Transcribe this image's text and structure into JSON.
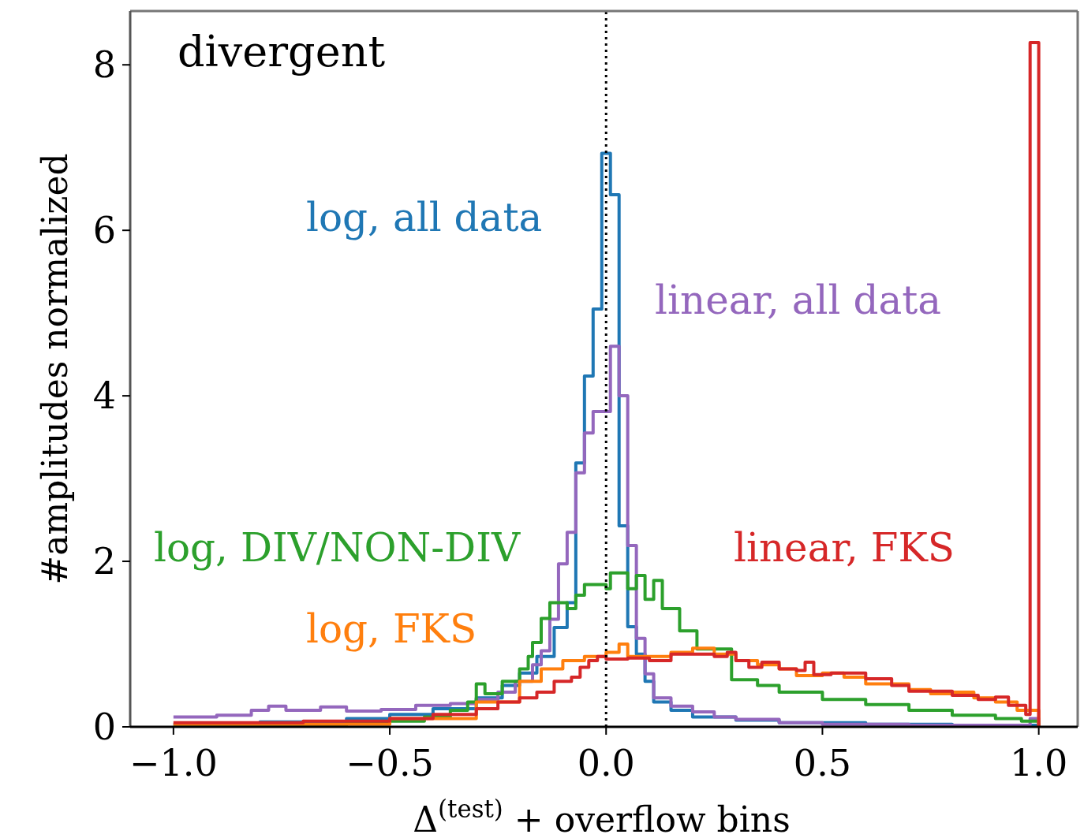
{
  "chart_data": {
    "type": "step",
    "xlabel": "Δ$^{(test)}$ + overflow bins",
    "ylabel": "#amplitudes normalized",
    "xlim": [
      -1.1,
      1.09
    ],
    "ylim": [
      0,
      8.65
    ],
    "xticks": [
      {
        "value": -1,
        "label": "−1.0"
      },
      {
        "value": -0.5,
        "label": "−0.5"
      },
      {
        "value": 0,
        "label": "0.0"
      },
      {
        "value": 0.5,
        "label": "0.5"
      },
      {
        "value": 1,
        "label": "1.0"
      }
    ],
    "yticks": [
      0,
      2,
      4,
      6,
      8
    ],
    "grid": false,
    "ref_lines": [
      {
        "axis": "x",
        "value": 0,
        "color": "#000000",
        "line_style": "dotted"
      }
    ],
    "annotations": [
      "divergent"
    ],
    "series": [
      {
        "name": "log, all data",
        "color": "#1f77b4",
        "x": [
          -1.0,
          -0.8,
          -0.6,
          -0.5,
          -0.4,
          -0.3,
          -0.24,
          -0.2,
          -0.16,
          -0.12,
          -0.09,
          -0.07,
          -0.05,
          -0.03,
          -0.01,
          0.01,
          0.03,
          0.05,
          0.07,
          0.09,
          0.11,
          0.15,
          0.2,
          0.3,
          0.4,
          0.6,
          0.8,
          1.0
        ],
        "values": [
          0.03,
          0.06,
          0.1,
          0.15,
          0.22,
          0.35,
          0.5,
          0.65,
          0.85,
          1.2,
          1.5,
          3.19,
          4.24,
          5.05,
          6.93,
          6.43,
          2.43,
          1.21,
          0.88,
          0.55,
          0.3,
          0.2,
          0.12,
          0.08,
          0.05,
          0.03,
          0.02,
          0
        ]
      },
      {
        "name": "linear, all data",
        "color": "#9467bd",
        "x": [
          -1.0,
          -0.9,
          -0.82,
          -0.78,
          -0.74,
          -0.66,
          -0.6,
          -0.52,
          -0.44,
          -0.36,
          -0.3,
          -0.25,
          -0.21,
          -0.17,
          -0.15,
          -0.13,
          -0.11,
          -0.09,
          -0.07,
          -0.05,
          -0.03,
          0.01,
          0.03,
          0.05,
          0.07,
          0.09,
          0.11,
          0.15,
          0.2,
          0.25,
          0.3,
          0.4,
          0.5,
          0.7,
          0.98,
          1.0
        ],
        "values": [
          0.12,
          0.14,
          0.2,
          0.25,
          0.2,
          0.24,
          0.19,
          0.21,
          0.26,
          0.28,
          0.33,
          0.42,
          0.55,
          0.75,
          0.92,
          1.3,
          1.97,
          2.35,
          3.07,
          3.55,
          3.81,
          4.6,
          4.0,
          2.19,
          1.07,
          0.64,
          0.35,
          0.25,
          0.18,
          0.12,
          0.09,
          0.05,
          0.03,
          0.02,
          0.1,
          0
        ]
      },
      {
        "name": "log, DIV/NON-DIV",
        "color": "#2ca02c",
        "x": [
          -1.0,
          -0.6,
          -0.5,
          -0.42,
          -0.36,
          -0.32,
          -0.3,
          -0.28,
          -0.24,
          -0.2,
          -0.18,
          -0.17,
          -0.15,
          -0.13,
          -0.09,
          -0.07,
          -0.05,
          0.0,
          0.01,
          0.05,
          0.07,
          0.09,
          0.11,
          0.13,
          0.17,
          0.21,
          0.29,
          0.35,
          0.4,
          0.5,
          0.6,
          0.7,
          0.8,
          0.9,
          0.96,
          1.0
        ],
        "values": [
          0.02,
          0.04,
          0.07,
          0.12,
          0.2,
          0.3,
          0.52,
          0.4,
          0.55,
          0.7,
          0.85,
          1.02,
          1.31,
          1.5,
          1.43,
          1.59,
          1.72,
          1.67,
          1.86,
          1.67,
          1.83,
          1.54,
          1.77,
          1.43,
          1.16,
          0.94,
          0.57,
          0.5,
          0.42,
          0.33,
          0.27,
          0.2,
          0.14,
          0.1,
          0.07,
          0
        ]
      },
      {
        "name": "log, FKS",
        "color": "#ff7f0e",
        "x": [
          -1.0,
          -0.5,
          -0.3,
          -0.2,
          -0.15,
          -0.1,
          -0.05,
          0.0,
          0.03,
          0.05,
          0.1,
          0.15,
          0.2,
          0.25,
          0.3,
          0.35,
          0.4,
          0.44,
          0.5,
          0.55,
          0.6,
          0.7,
          0.75,
          0.8,
          0.85,
          0.9,
          0.95,
          1.0
        ],
        "values": [
          0.03,
          0.1,
          0.3,
          0.55,
          0.7,
          0.8,
          0.85,
          0.9,
          1.0,
          0.85,
          0.85,
          0.9,
          0.95,
          0.88,
          0.8,
          0.75,
          0.7,
          0.62,
          0.65,
          0.6,
          0.52,
          0.45,
          0.4,
          0.42,
          0.35,
          0.3,
          0.2,
          0
        ]
      },
      {
        "name": "linear, FKS",
        "color": "#d62728",
        "x": [
          -1.0,
          -0.7,
          -0.5,
          -0.4,
          -0.3,
          -0.25,
          -0.2,
          -0.16,
          -0.12,
          -0.08,
          -0.06,
          -0.04,
          -0.02,
          0.0,
          0.05,
          0.1,
          0.15,
          0.2,
          0.25,
          0.28,
          0.3,
          0.33,
          0.36,
          0.4,
          0.44,
          0.46,
          0.48,
          0.52,
          0.6,
          0.66,
          0.7,
          0.8,
          0.86,
          0.9,
          0.93,
          0.97,
          0.98,
          1.0
        ],
        "values": [
          0.05,
          0.07,
          0.1,
          0.15,
          0.22,
          0.3,
          0.35,
          0.42,
          0.55,
          0.6,
          0.72,
          0.8,
          0.85,
          0.82,
          0.83,
          0.8,
          0.88,
          0.88,
          0.85,
          0.9,
          0.8,
          0.72,
          0.78,
          0.7,
          0.68,
          0.78,
          0.63,
          0.65,
          0.58,
          0.5,
          0.43,
          0.38,
          0.33,
          0.36,
          0.26,
          0.15,
          8.27,
          0
        ]
      }
    ]
  }
}
